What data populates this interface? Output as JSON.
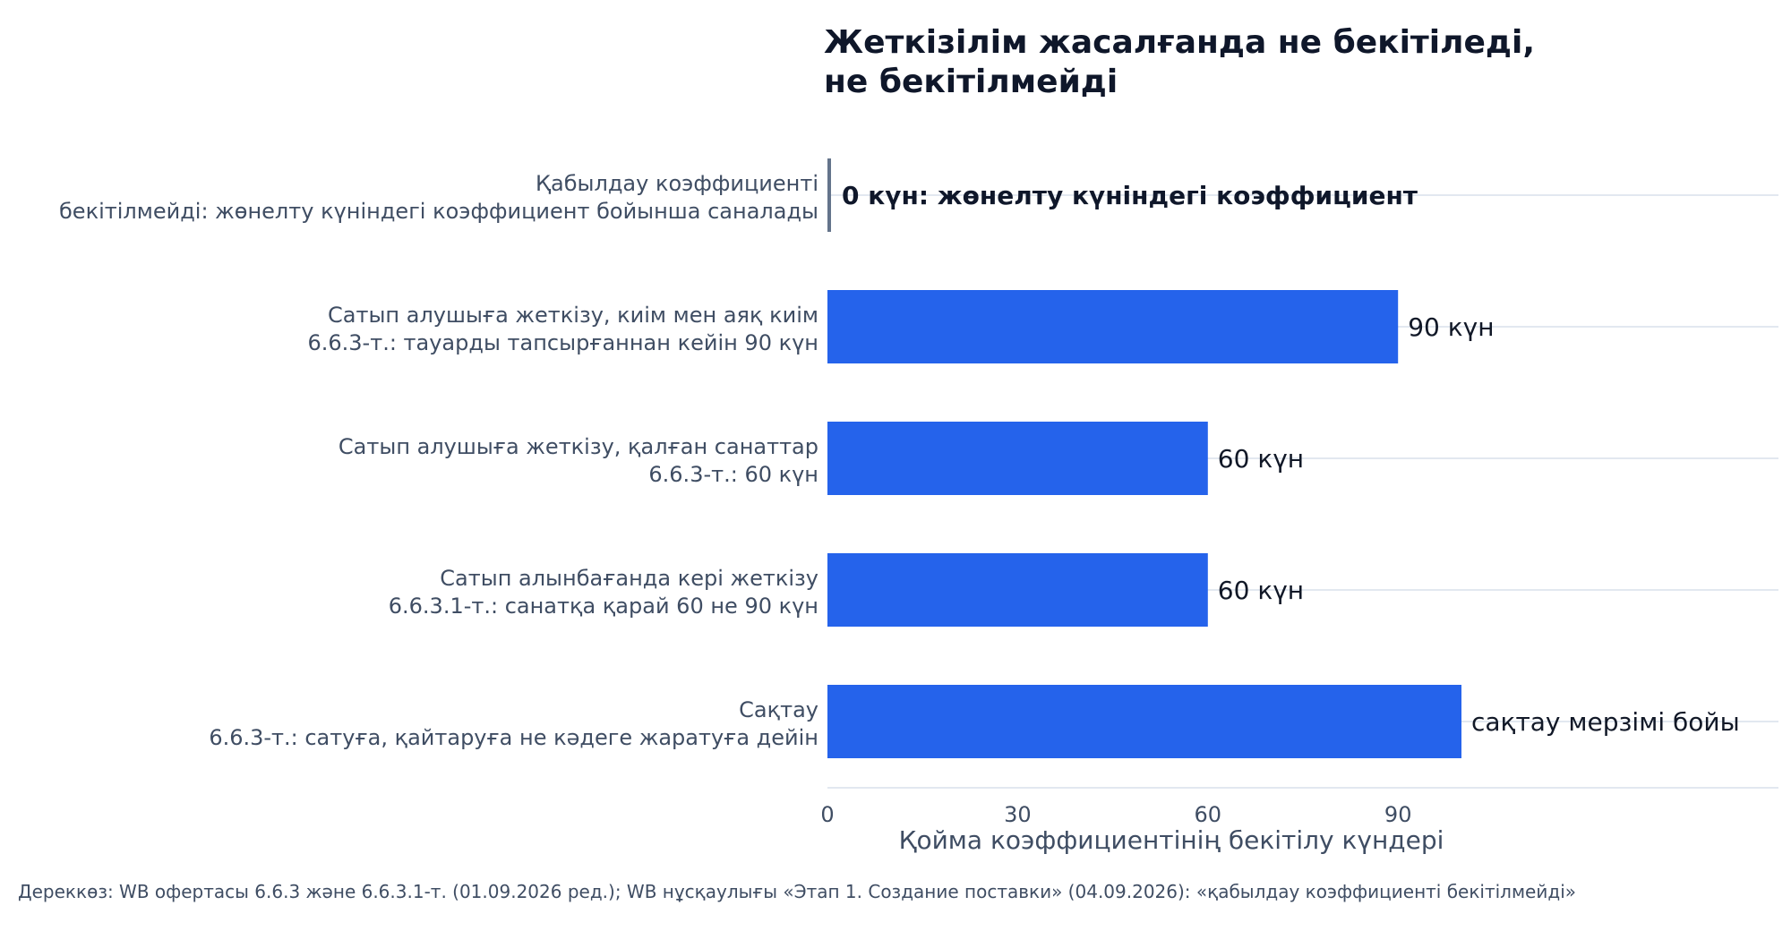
{
  "chart_data": {
    "type": "bar",
    "orientation": "horizontal",
    "title_lines": [
      "Жеткізілім жасалғанда не бекітіледі,",
      "не бекітілмейді"
    ],
    "categories": [
      {
        "lines": [
          "Қабылдау коэффициенті",
          "бекітілмейді: жөнелту күніндегі коэффициент бойынша саналады"
        ]
      },
      {
        "lines": [
          "Сатып алушыға жеткізу, киім мен аяқ киім",
          "6.6.3-т.: тауарды тапсырғаннан кейін 90 күн"
        ]
      },
      {
        "lines": [
          "Сатып алушыға жеткізу, қалған санаттар",
          "6.6.3-т.: 60 күн"
        ]
      },
      {
        "lines": [
          "Сатып алынбағанда кері жеткізу",
          "6.6.3.1-т.: санатқа қарай 60 не 90 күн"
        ]
      },
      {
        "lines": [
          "Сақтау",
          "6.6.3-т.: сатуға, қайтаруға не кәдеге жаратуға дейін"
        ]
      }
    ],
    "values": [
      0,
      90,
      60,
      60,
      100
    ],
    "data_labels": [
      "0 күн: жөнелту күніндегі коэффициент",
      "90 күн",
      "60 күн",
      "60 күн",
      "сақтау мерзімі бойы"
    ],
    "xlabel": "Қойма коэффициентінің бекітілу күндері",
    "xticks": [
      0,
      30,
      60,
      90
    ],
    "xlim": [
      0,
      150
    ],
    "grid": true,
    "colors": {
      "bar": "#2563eb",
      "marker": "#64748b",
      "grid": "#e2e8f0",
      "axis": "#e2e8f0",
      "title": "#0f172a",
      "category_label": "#3f4d63",
      "tick_label": "#3f4d63",
      "data_label": "#111827"
    }
  },
  "source_note": "Дереккөз: WB офертасы 6.6.3 және 6.6.3.1-т. (01.09.2026 ред.); WB нұсқаулығы «Этап 1. Создание поставки» (04.09.2026): «қабылдау коэффициенті бекітілмейді»"
}
